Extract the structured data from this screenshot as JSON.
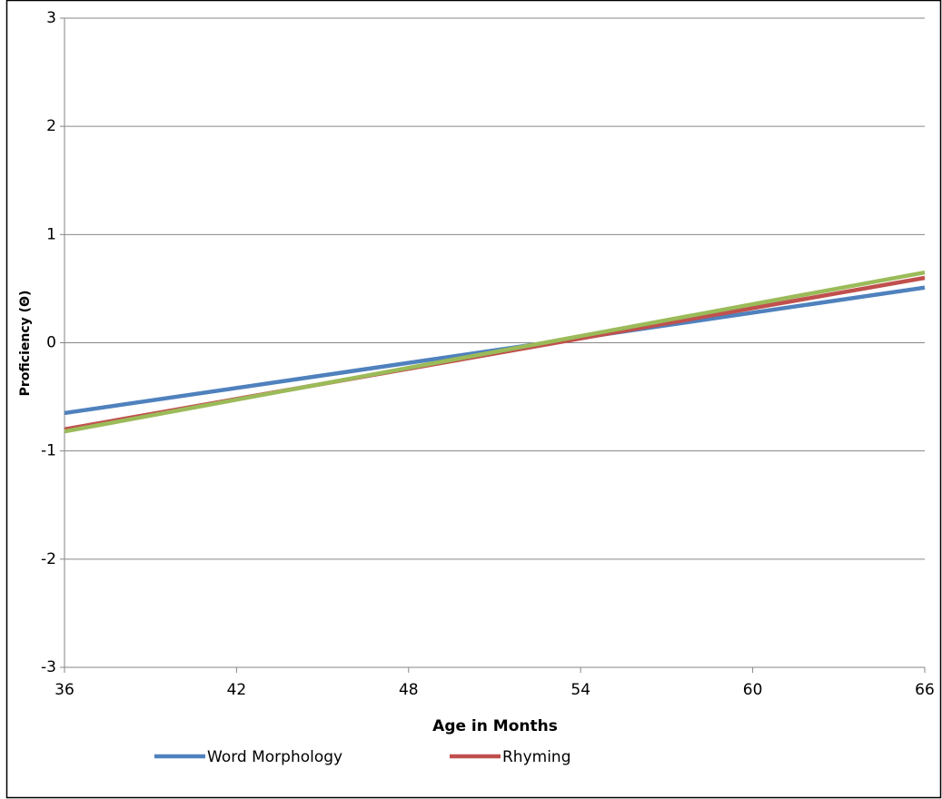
{
  "chart_data": {
    "type": "line",
    "x_label": "Age in Months",
    "y_label": "Proficiency (Θ)",
    "x": [
      36,
      66
    ],
    "series": [
      {
        "name": "Word Morphology",
        "color": "#4f81bd",
        "values": [
          -0.65,
          0.51
        ]
      },
      {
        "name": "Rhyming",
        "color": "#c0504d",
        "values": [
          -0.8,
          0.6
        ]
      },
      {
        "color": "#9bbb59",
        "values": [
          -0.82,
          0.65
        ]
      }
    ],
    "xlim": [
      36,
      66
    ],
    "xticks": [
      36,
      42,
      48,
      54,
      60,
      66
    ],
    "ylim": [
      -3,
      3
    ],
    "yticks": [
      -3,
      -2,
      -1,
      0,
      1,
      2,
      3
    ],
    "grid": true
  }
}
